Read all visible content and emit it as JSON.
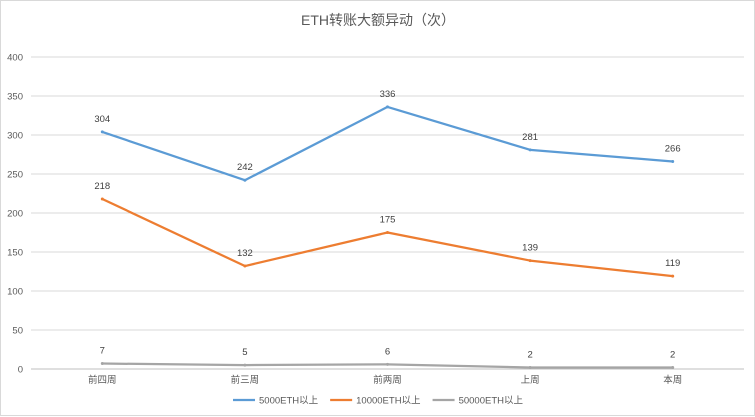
{
  "chart_data": {
    "type": "line",
    "title": "ETH转账大额异动（次）",
    "categories": [
      "前四周",
      "前三周",
      "前两周",
      "上周",
      "本周"
    ],
    "ylim": [
      0,
      400
    ],
    "yticks": [
      0,
      50,
      100,
      150,
      200,
      250,
      300,
      350,
      400
    ],
    "grid": true,
    "legend_position": "bottom",
    "series": [
      {
        "name": "5000ETH以上",
        "color": "#5b9bd5",
        "values": [
          304,
          242,
          336,
          281,
          266
        ]
      },
      {
        "name": "10000ETH以上",
        "color": "#ed7d31",
        "values": [
          218,
          132,
          175,
          139,
          119
        ]
      },
      {
        "name": "50000ETH以上",
        "color": "#a5a5a5",
        "values": [
          7,
          5,
          6,
          2,
          2
        ]
      }
    ]
  }
}
